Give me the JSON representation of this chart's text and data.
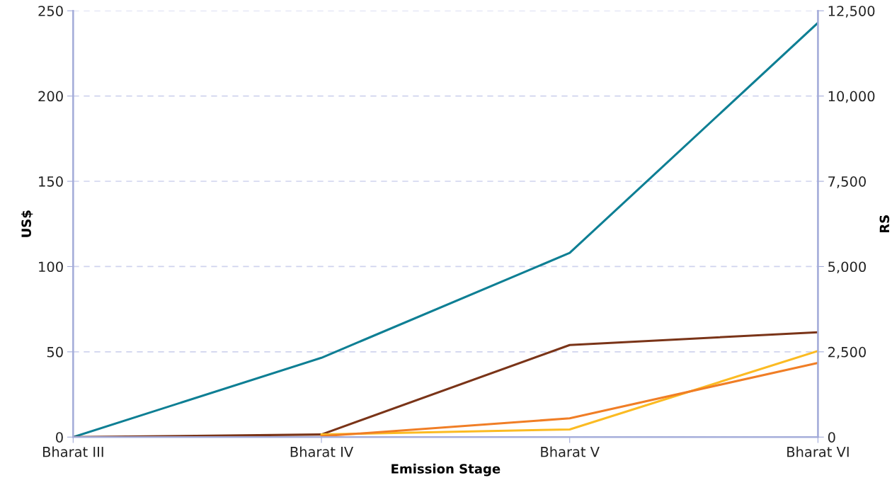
{
  "chart_data": {
    "type": "line",
    "xlabel": "Emission Stage",
    "ylabel": "US$",
    "y2label": "RS",
    "categories": [
      "Bharat III",
      "Bharat IV",
      "Bharat V",
      "Bharat VI"
    ],
    "series": [
      {
        "color": "#0e7f94",
        "values": [
          0,
          46.5,
          108,
          243
        ]
      },
      {
        "color": "#7a3418",
        "values": [
          0,
          1.5,
          54,
          61.5
        ]
      },
      {
        "color": "#fbbb23",
        "values": [
          null,
          1.5,
          4.5,
          50.5
        ]
      },
      {
        "color": "#f07e26",
        "values": [
          null,
          0.5,
          11,
          43.5
        ]
      }
    ],
    "ylim": [
      0,
      250
    ],
    "yticks": [
      0,
      50,
      100,
      150,
      200,
      250
    ],
    "y2lim": [
      0,
      12500
    ],
    "y2ticks": [
      0,
      {
        "value": 2500,
        "label": "2,500"
      },
      {
        "value": 5000,
        "label": "5,000"
      },
      {
        "value": 7500,
        "label": "7,500"
      },
      {
        "value": 10000,
        "label": "10,000"
      },
      {
        "value": 12500,
        "label": "12,500"
      }
    ],
    "grid": "y"
  }
}
